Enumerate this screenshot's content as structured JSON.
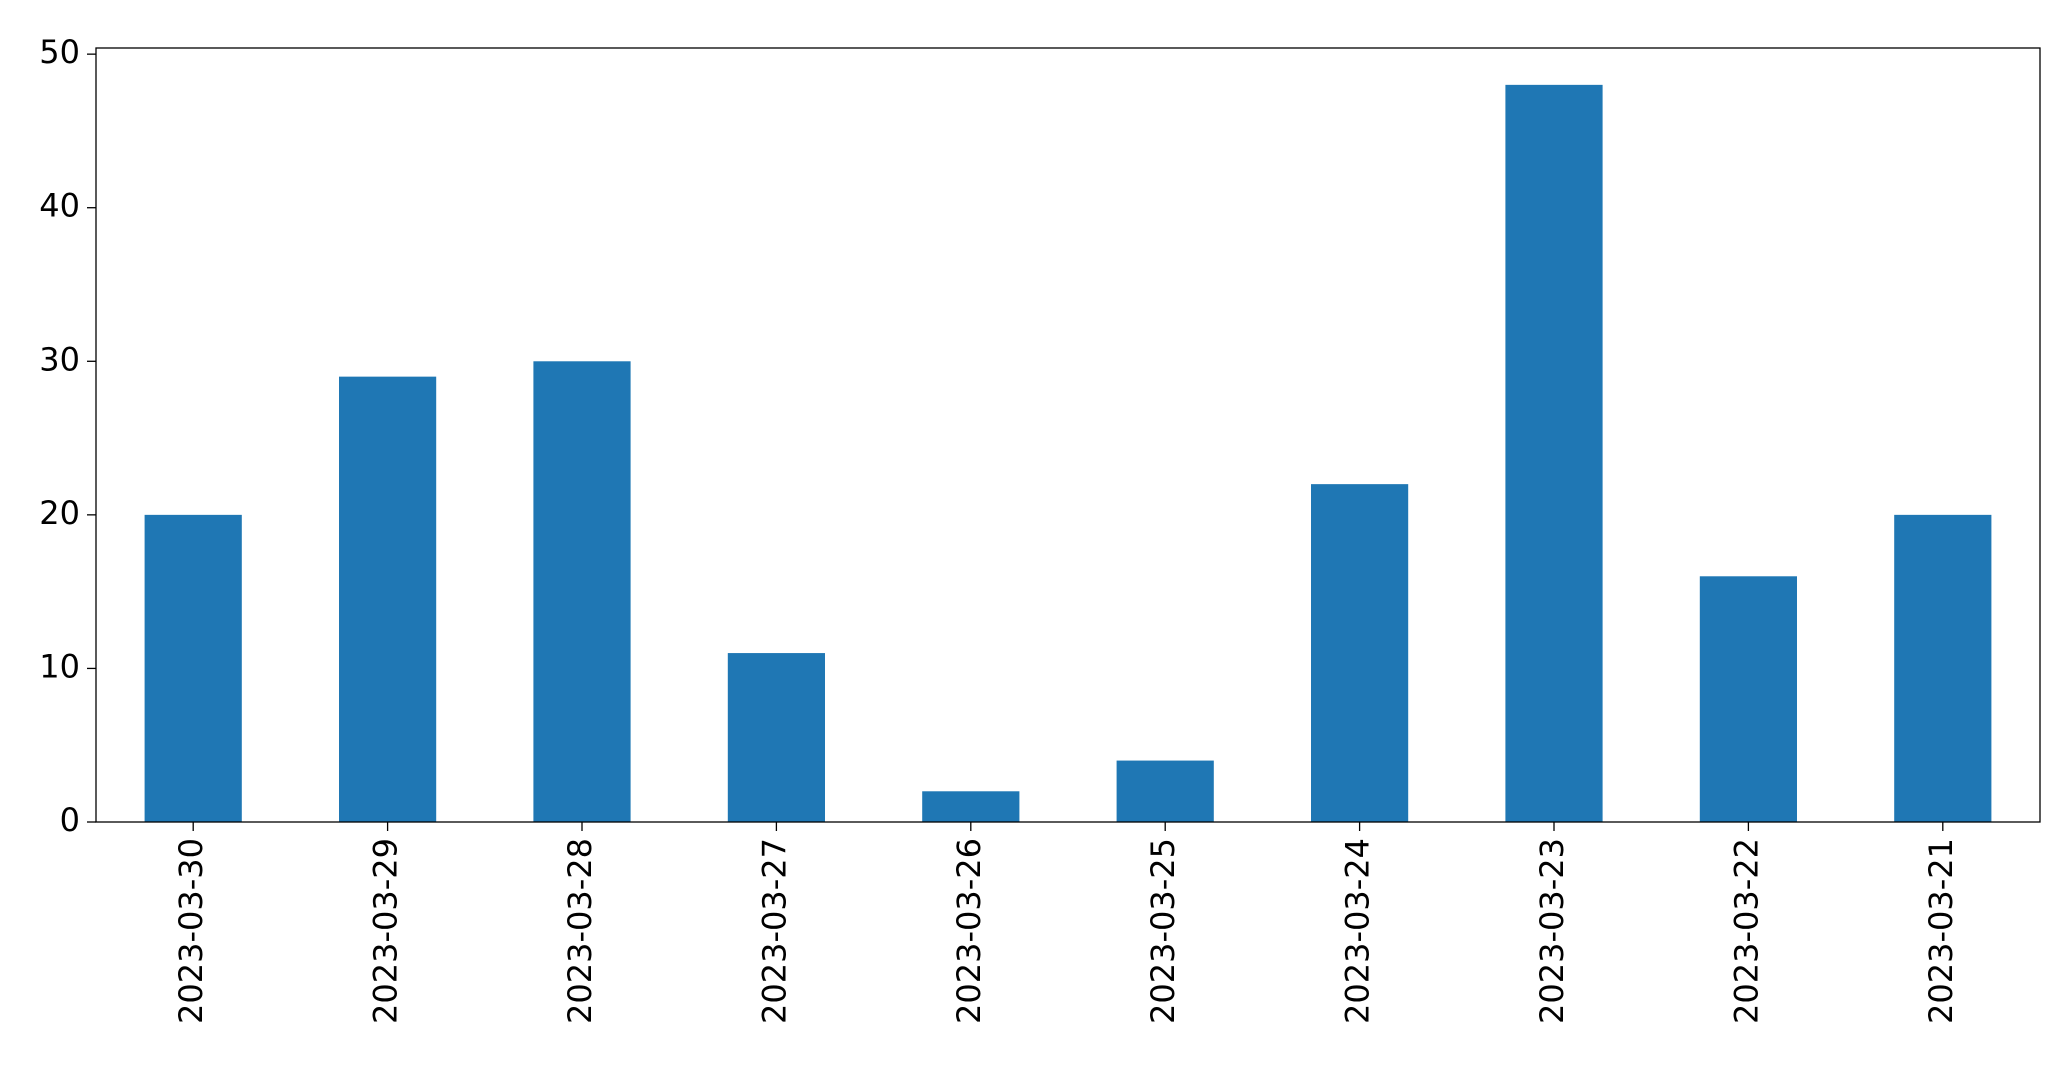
{
  "chart_data": {
    "type": "bar",
    "categories": [
      "2023-03-30",
      "2023-03-29",
      "2023-03-28",
      "2023-03-27",
      "2023-03-26",
      "2023-03-25",
      "2023-03-24",
      "2023-03-23",
      "2023-03-22",
      "2023-03-21"
    ],
    "values": [
      20,
      29,
      30,
      11,
      2,
      4,
      22,
      48,
      16,
      20
    ],
    "color": "#1f77b4",
    "ylim": [
      0,
      50.4
    ],
    "yticks": [
      0,
      10,
      20,
      30,
      40,
      50
    ],
    "grid": false
  }
}
